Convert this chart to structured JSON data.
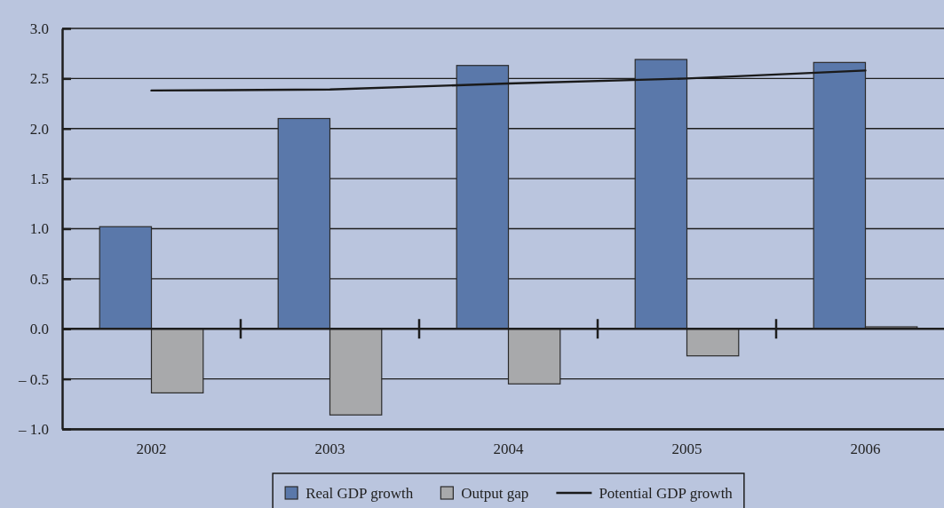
{
  "chart_data": {
    "type": "bar",
    "categories": [
      "2002",
      "2003",
      "2004",
      "2005",
      "2006"
    ],
    "series": [
      {
        "name": "Real GDP growth",
        "type": "bar",
        "color": "#5a78aa",
        "values": [
          1.02,
          2.1,
          2.63,
          2.69,
          2.66
        ]
      },
      {
        "name": "Output gap",
        "type": "bar",
        "color": "#a8a9ab",
        "values": [
          -0.64,
          -0.86,
          -0.55,
          -0.27,
          0.02
        ]
      },
      {
        "name": "Potential GDP growth",
        "type": "line",
        "color": "#1a1a1a",
        "values": [
          2.38,
          2.39,
          2.45,
          2.5,
          2.58
        ]
      }
    ],
    "ylim": [
      -1,
      3
    ],
    "yticks": [
      {
        "value": -1,
        "label": "– 1.0"
      },
      {
        "value": -0.5,
        "label": "– 0.5"
      },
      {
        "value": 0,
        "label": "0.0"
      },
      {
        "value": 0.5,
        "label": "0.5"
      },
      {
        "value": 1,
        "label": "1.0"
      },
      {
        "value": 1.5,
        "label": "1.5"
      },
      {
        "value": 2,
        "label": "2.0"
      },
      {
        "value": 2.5,
        "label": "2.5"
      },
      {
        "value": 3,
        "label": "3.0"
      }
    ],
    "grid": "y",
    "legend": "bottom"
  }
}
